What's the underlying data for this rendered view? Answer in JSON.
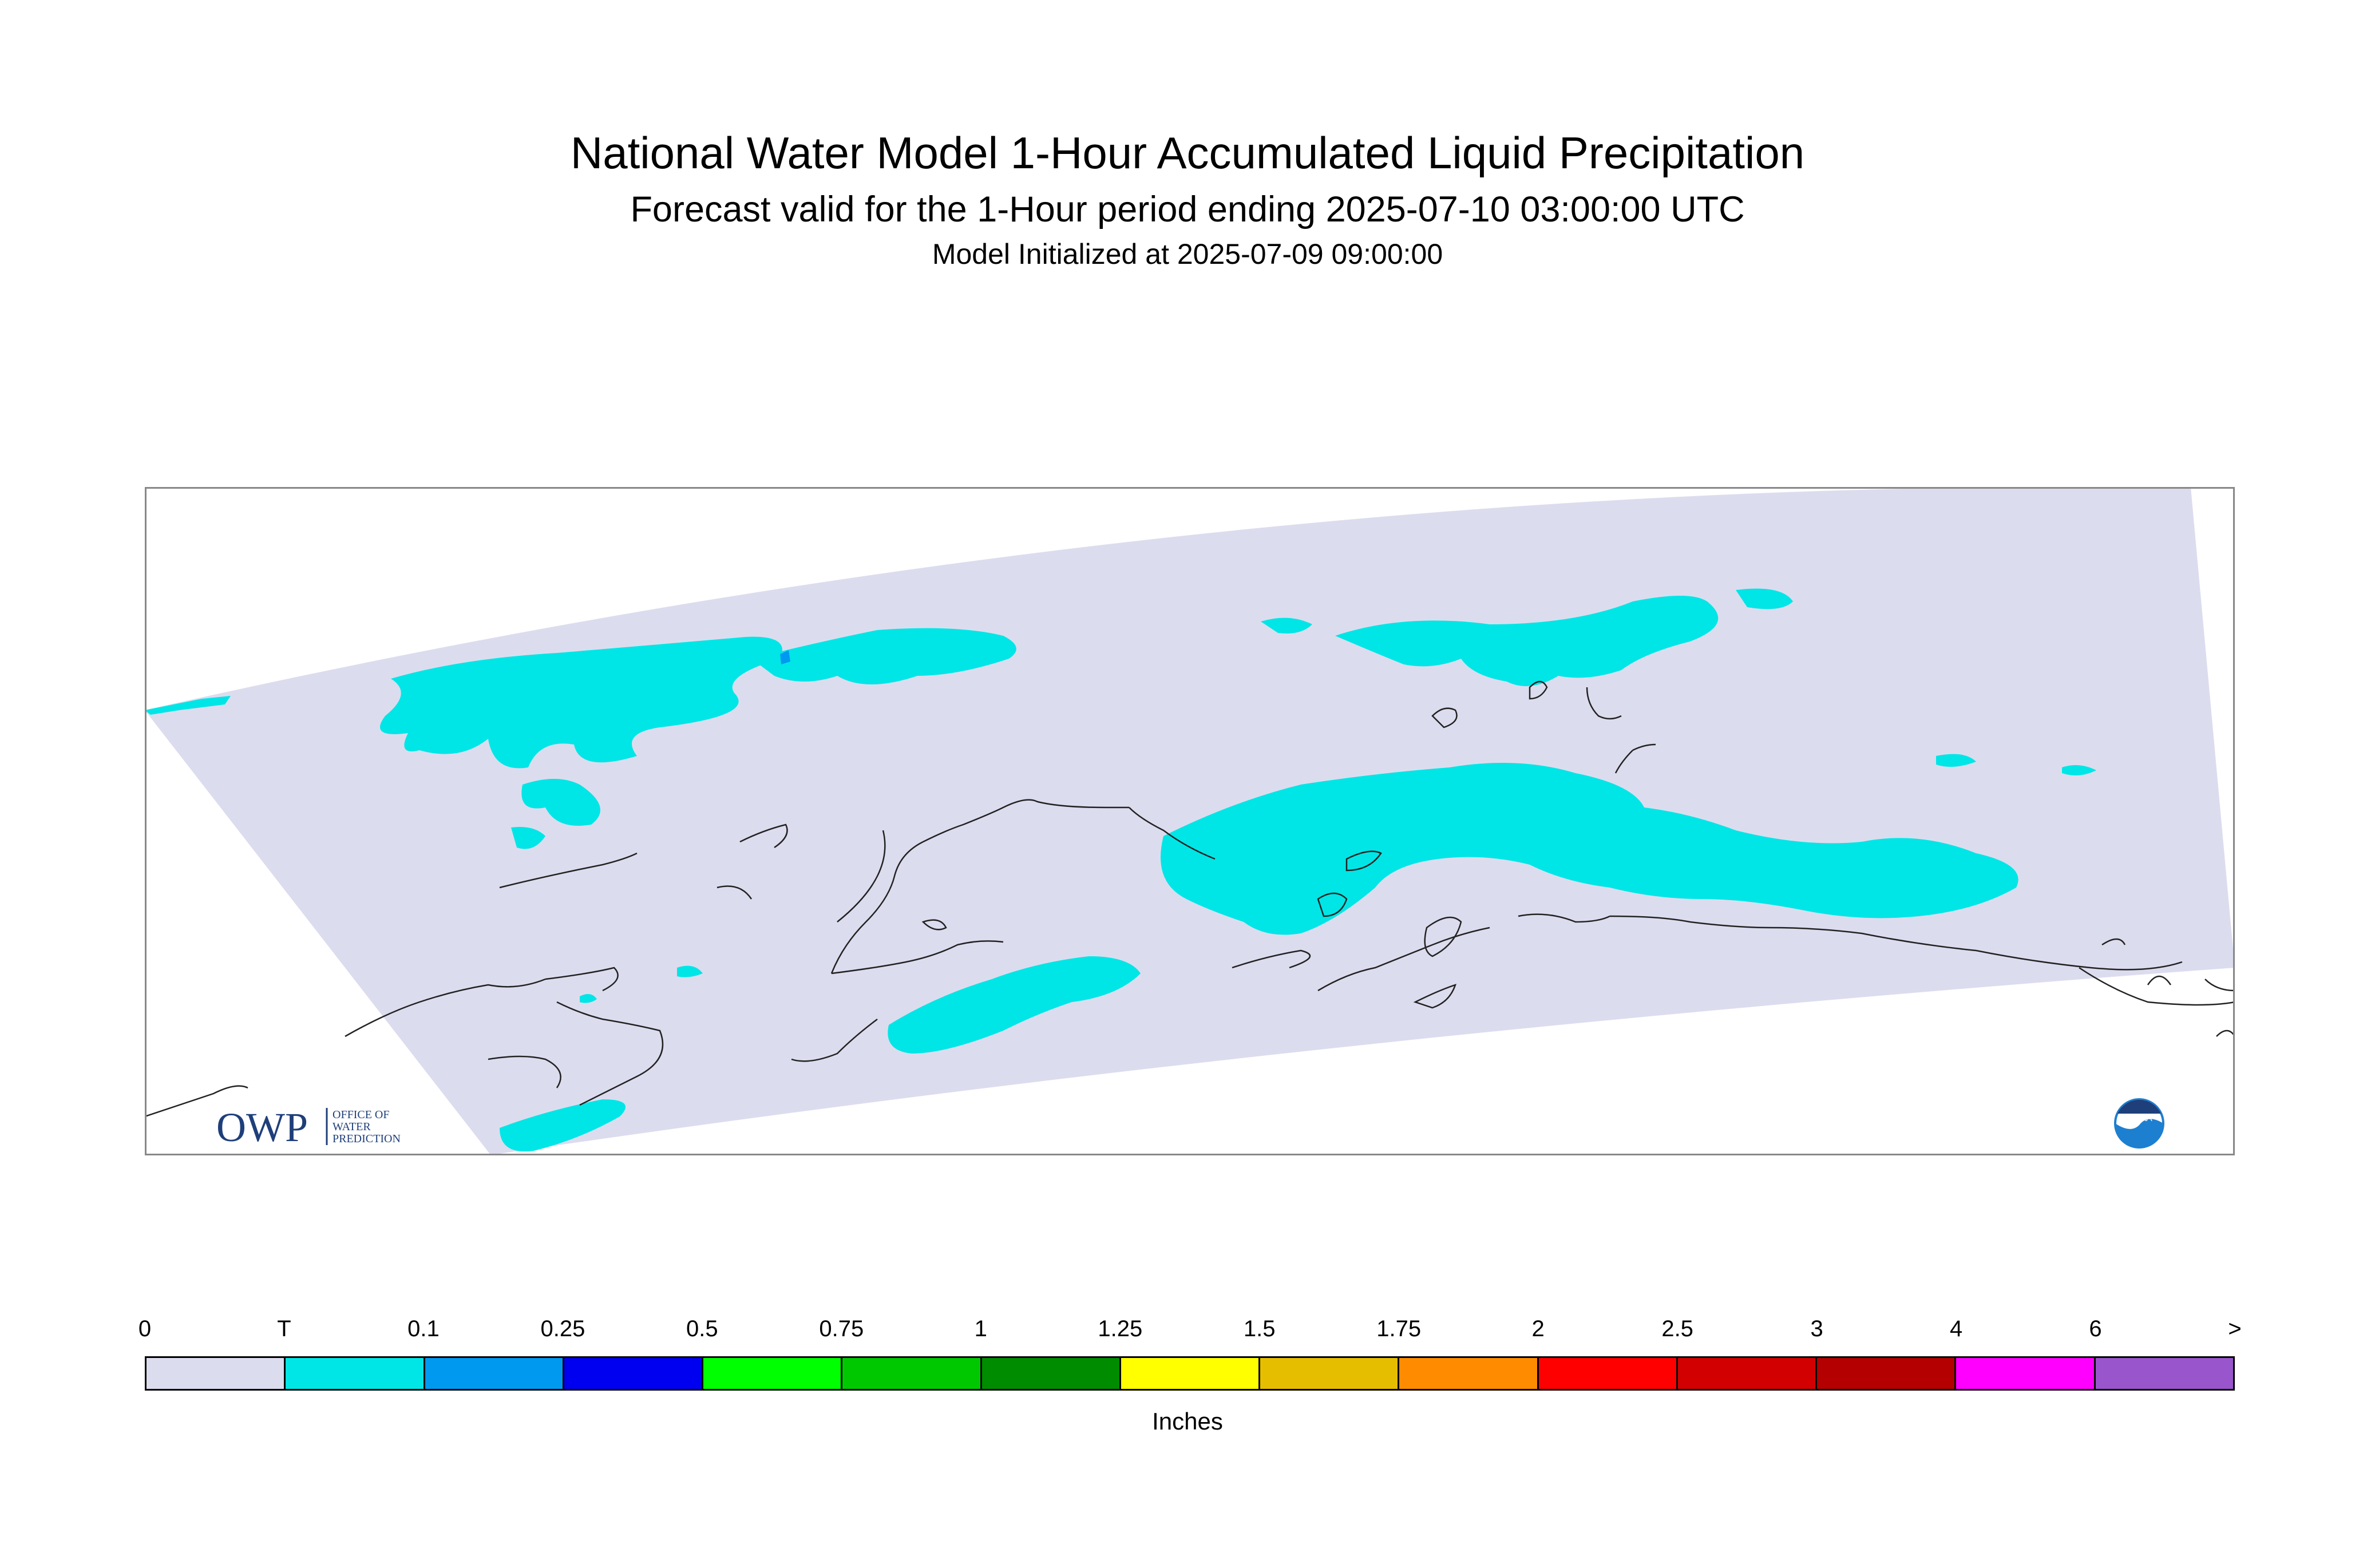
{
  "title": "National Water Model 1-Hour Accumulated Liquid Precipitation",
  "subtitle": "Forecast valid for the 1-Hour period ending 2025-07-10 03:00:00 UTC",
  "init_line": "Model Initialized at 2025-07-09 09:00:00",
  "logos": {
    "owp_letters": "OWP",
    "owp_name": [
      "OFFICE OF",
      "WATER",
      "PREDICTION"
    ],
    "noaa_label": "NOAA"
  },
  "colors": {
    "domain_fill": "#dcdcef",
    "trace": "#00e6e6",
    "coast": "#222222",
    "owp_blue": "#1f3f7a",
    "noaa_blue": "#1d7fd0"
  },
  "legend": {
    "units": "Inches",
    "labels": [
      "0",
      "T",
      "0.1",
      "0.25",
      "0.5",
      "0.75",
      "1",
      "1.25",
      "1.5",
      "1.75",
      "2",
      "2.5",
      "3",
      "4",
      "6",
      ">"
    ],
    "colors": [
      "#dcdcef",
      "#00e6e6",
      "#0099f0",
      "#0000f0",
      "#00ff00",
      "#00c800",
      "#008c00",
      "#ffff00",
      "#e6be00",
      "#ff8c00",
      "#ff0000",
      "#d20000",
      "#b40000",
      "#ff00ff",
      "#9955cc"
    ]
  }
}
